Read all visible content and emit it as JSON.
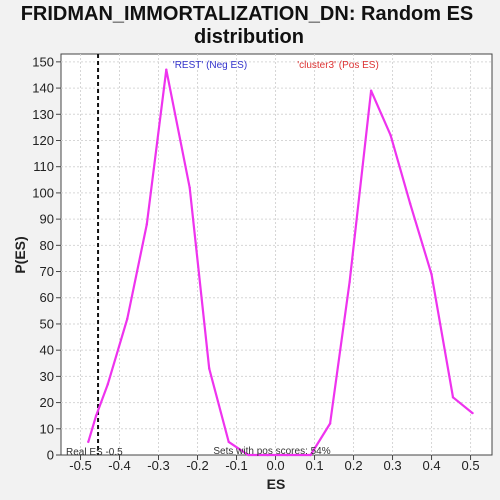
{
  "chart_data": {
    "type": "line",
    "title_lines": [
      "FRIDMAN_IMMORTALIZATION_DN: Random ES",
      "distribution"
    ],
    "xlabel": "ES",
    "ylabel": "P(ES)",
    "xlim": [
      -0.55,
      0.555
    ],
    "ylim": [
      0,
      153
    ],
    "x_ticks": [
      -0.5,
      -0.4,
      -0.3,
      -0.2,
      -0.1,
      0.0,
      0.1,
      0.2,
      0.3,
      0.4,
      0.5
    ],
    "x_tick_labels": [
      "-0.5",
      "-0.4",
      "-0.3",
      "-0.2",
      "-0.1",
      "0.0",
      "0.1",
      "0.2",
      "0.3",
      "0.4",
      "0.5"
    ],
    "y_ticks": [
      0,
      10,
      20,
      30,
      40,
      50,
      60,
      70,
      80,
      90,
      100,
      110,
      120,
      130,
      140,
      150
    ],
    "y_tick_labels": [
      "0",
      "10",
      "20",
      "30",
      "40",
      "50",
      "60",
      "70",
      "80",
      "90",
      "100",
      "110",
      "120",
      "130",
      "140",
      "150"
    ],
    "grid": true,
    "line_color": "#ee33ee",
    "series": [
      {
        "x": [
          -0.48,
          -0.46,
          -0.43,
          -0.38,
          -0.33,
          -0.28,
          -0.22,
          -0.17,
          -0.12,
          -0.07,
          -0.02,
          0.03,
          0.09,
          0.14,
          0.19,
          0.245,
          0.295,
          0.345,
          0.4,
          0.455,
          0.505
        ],
        "y": [
          5,
          15,
          27,
          52,
          88,
          147,
          102,
          33,
          5,
          0,
          0,
          0,
          0,
          12,
          66,
          139,
          122,
          96,
          69,
          22,
          16
        ]
      }
    ],
    "real_es": {
      "x": -0.455,
      "label": "Real ES -0.5",
      "color": "#111111"
    },
    "annotations": {
      "neg_label": "'REST' (Neg ES)",
      "neg_color": "#3333cc",
      "pos_label": "'cluster3' (Pos ES)",
      "pos_color": "#dd3333",
      "sets_label": "Sets with pos scores: 54%"
    }
  }
}
